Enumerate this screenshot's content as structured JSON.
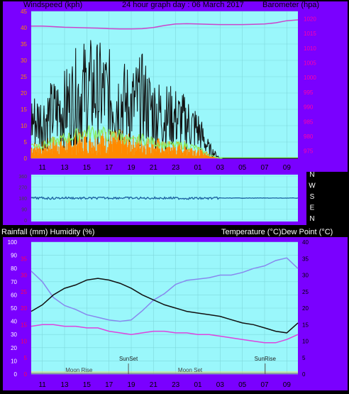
{
  "chart_data": [
    {
      "type": "line",
      "title": "24 hour graph day : 06 March 2017",
      "ylabel": "Windspeed (kph)",
      "y2label": "Barometer (hpa)",
      "x_ticks": [
        "11",
        "13",
        "15",
        "17",
        "19",
        "21",
        "23",
        "01",
        "03",
        "05",
        "07",
        "09"
      ],
      "ylim": [
        0,
        45
      ],
      "y_ticks": [
        0,
        5,
        10,
        15,
        20,
        25,
        30,
        35,
        40,
        45
      ],
      "y2lim": [
        972.5,
        1022.5
      ],
      "y2_ticks": [
        975,
        980,
        985,
        990,
        995,
        1000,
        1005,
        1010,
        1015,
        1020
      ],
      "series": [
        {
          "name": "Barometer",
          "axis": "right",
          "color": "#cc44cc",
          "x": [
            0,
            1,
            2,
            3,
            4,
            5,
            6,
            7,
            8,
            9,
            10,
            11,
            12,
            13,
            14,
            15,
            16,
            17,
            18,
            19,
            20,
            21,
            22,
            23,
            24
          ],
          "values": [
            1017.5,
            1017.5,
            1017.3,
            1017.1,
            1017.0,
            1016.9,
            1016.8,
            1016.6,
            1016.5,
            1016.5,
            1016.6,
            1017.0,
            1017.7,
            1018.2,
            1018.3,
            1018.2,
            1018.1,
            1018.0,
            1018.0,
            1018.0,
            1018.1,
            1018.2,
            1018.6,
            1019.3,
            1019.6
          ]
        },
        {
          "name": "Wind gust",
          "axis": "left",
          "color": "#111111",
          "x": [
            0,
            1,
            2,
            3,
            4,
            5,
            6,
            7,
            8,
            9,
            10,
            11,
            12,
            13,
            14,
            15,
            16,
            17,
            18,
            19,
            20,
            21,
            22,
            23,
            24
          ],
          "values": [
            16,
            16,
            19,
            21,
            26,
            29,
            28,
            26,
            24,
            22,
            25,
            20,
            18,
            17,
            15,
            12,
            4,
            0,
            0,
            0,
            0,
            0,
            0,
            0,
            0
          ]
        },
        {
          "name": "Average wind",
          "axis": "left",
          "color": "#88ee66",
          "x": [
            0,
            1,
            2,
            3,
            4,
            5,
            6,
            7,
            8,
            9,
            10,
            11,
            12,
            13,
            14,
            15,
            16,
            17,
            18,
            19,
            20,
            21,
            22,
            23,
            24
          ],
          "values": [
            4,
            4,
            5,
            6,
            7,
            8,
            8,
            7,
            7,
            5,
            6,
            5,
            4,
            4,
            4,
            3,
            1,
            0,
            0,
            0,
            0,
            0,
            0,
            0,
            0
          ]
        },
        {
          "name": "Wind speed",
          "axis": "left",
          "color": "#ff8a00",
          "x": [
            0,
            1,
            2,
            3,
            4,
            5,
            6,
            7,
            8,
            9,
            10,
            11,
            12,
            13,
            14,
            15,
            16,
            17,
            18,
            19,
            20,
            21,
            22,
            23,
            24
          ],
          "values": [
            3,
            3,
            4,
            4,
            5,
            5,
            5,
            5,
            5,
            4,
            4,
            4,
            3,
            3,
            3,
            2,
            1,
            0,
            0,
            0,
            0,
            0,
            0,
            0,
            0
          ]
        }
      ]
    },
    {
      "type": "line",
      "ylim": [
        0,
        360
      ],
      "y_ticks": [
        0,
        90,
        180,
        270,
        360
      ],
      "y_tick_labels": [
        "360",
        "270",
        "180",
        "90",
        "0"
      ],
      "compass_labels": [
        "N",
        "W",
        "S",
        "E",
        "N"
      ],
      "series": [
        {
          "name": "Wind direction",
          "color": "#1a5fa0",
          "x": [
            0,
            1,
            2,
            3,
            4,
            5,
            6,
            7,
            8,
            9,
            10,
            11,
            12,
            13,
            14,
            15,
            16,
            17,
            18,
            19,
            20,
            21,
            22,
            23,
            24
          ],
          "values": [
            180,
            180,
            182,
            178,
            180,
            182,
            180,
            179,
            178,
            180,
            181,
            180,
            180,
            181,
            182,
            182,
            182,
            180,
            180,
            180,
            180,
            180,
            180,
            180,
            180
          ]
        }
      ]
    },
    {
      "type": "line",
      "labels": {
        "rain_hum": "Rainfall (mm)  Humidity (%)",
        "temp_dew": "Temperature (°C)Dew Point (°C)"
      },
      "x_ticks": [
        "11",
        "13",
        "15",
        "17",
        "19",
        "21",
        "23",
        "01",
        "03",
        "05",
        "07",
        "09"
      ],
      "ylim": [
        0,
        100
      ],
      "y_ticks": [
        0,
        10,
        20,
        30,
        40,
        50,
        60,
        70,
        80,
        90,
        100
      ],
      "rain_ticks": [
        0,
        5,
        10,
        15,
        20,
        25,
        30,
        35
      ],
      "y2lim": [
        0,
        40
      ],
      "y2_ticks": [
        0,
        5,
        10,
        15,
        20,
        25,
        30,
        35,
        40
      ],
      "annotations": [
        {
          "text": "Moon Rise",
          "x": 4.3,
          "marker": false
        },
        {
          "text": "SunSet",
          "x": 8.75,
          "marker": true
        },
        {
          "text": "Moon Set",
          "x": 14.3,
          "marker": false
        },
        {
          "text": "SunRise",
          "x": 21.05,
          "marker": true
        }
      ],
      "series": [
        {
          "name": "Humidity",
          "axis": "left",
          "color": "#8888ee",
          "x": [
            0,
            1,
            2,
            3,
            4,
            5,
            6,
            7,
            8,
            9,
            10,
            11,
            12,
            13,
            14,
            15,
            16,
            17,
            18,
            19,
            20,
            21,
            22,
            23,
            24
          ],
          "values": [
            78,
            70,
            58,
            52,
            49,
            45,
            43,
            41,
            40,
            41,
            48,
            56,
            61,
            68,
            71,
            72,
            73,
            75,
            75,
            77,
            80,
            82,
            86,
            88,
            80
          ]
        },
        {
          "name": "Temperature",
          "axis": "right",
          "color": "#111111",
          "x": [
            0,
            1,
            2,
            3,
            4,
            5,
            6,
            7,
            8,
            9,
            10,
            11,
            12,
            13,
            14,
            15,
            16,
            17,
            18,
            19,
            20,
            21,
            22,
            23,
            24
          ],
          "values": [
            19,
            21,
            24,
            26,
            27,
            28.5,
            29,
            28.5,
            27.5,
            26,
            24,
            22.5,
            21,
            20,
            19,
            18.5,
            18,
            17.5,
            16.5,
            15.5,
            15,
            14,
            13,
            12.5,
            15.5
          ]
        },
        {
          "name": "Dew Point",
          "axis": "right",
          "color": "#dd44dd",
          "x": [
            0,
            1,
            2,
            3,
            4,
            5,
            6,
            7,
            8,
            9,
            10,
            11,
            12,
            13,
            14,
            15,
            16,
            17,
            18,
            19,
            20,
            21,
            22,
            23,
            24
          ],
          "values": [
            14.5,
            15,
            15,
            14.5,
            14.5,
            14,
            14,
            13,
            12.5,
            12,
            12.5,
            13,
            13,
            12.5,
            12.5,
            12,
            12,
            11.5,
            11,
            10.5,
            10,
            9.5,
            9.5,
            10.5,
            12
          ]
        },
        {
          "name": "Rainfall",
          "axis": "rain",
          "color": "#8a8a8a",
          "x": [
            0,
            24
          ],
          "values": [
            0,
            0
          ]
        }
      ]
    }
  ]
}
